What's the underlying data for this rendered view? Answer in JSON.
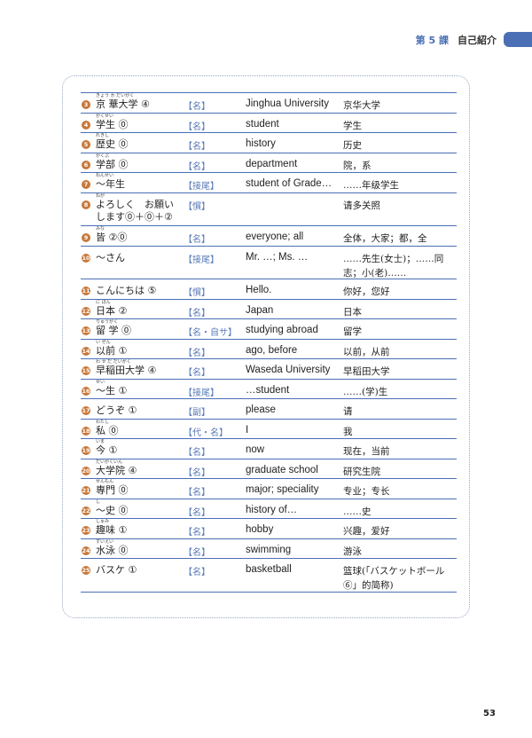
{
  "header": {
    "lesson": "第 5 課",
    "title": "自己紹介",
    "accent_color": "#4a6fb5"
  },
  "page_number": "53",
  "rows": [
    {
      "num": "3",
      "reading": "きょう か だいがく",
      "word": "京 華大学 ④",
      "pos": "【名】",
      "en": "Jinghua University",
      "zh": "京华大学"
    },
    {
      "num": "4",
      "reading": "がくせい",
      "word": "学生 ⓪",
      "pos": "【名】",
      "en": "student",
      "zh": "学生"
    },
    {
      "num": "5",
      "reading": "れきし",
      "word": "歴史 ⓪",
      "pos": "【名】",
      "en": "history",
      "zh": "历史"
    },
    {
      "num": "6",
      "reading": "がくぶ",
      "word": "学部 ⓪",
      "pos": "【名】",
      "en": "department",
      "zh": "院，系"
    },
    {
      "num": "7",
      "reading": "ねんせい",
      "word": "～年生",
      "pos": "【接尾】",
      "en": "student of Grade…",
      "zh": "……年级学生"
    },
    {
      "num": "8",
      "reading": "ねが",
      "word": "よろしく　お願い します⓪＋⓪＋②",
      "pos": "【慣】",
      "en": "",
      "zh": "请多关照",
      "tall": true
    },
    {
      "num": "9",
      "reading": "みな",
      "word": "皆 ②⓪",
      "pos": "【名】",
      "en": "everyone; all",
      "zh": "全体，大家；都，全"
    },
    {
      "num": "10",
      "reading": "",
      "word": "～さん",
      "pos": "【接尾】",
      "en": "Mr. …; Ms. …",
      "zh": "……先生(女士)；……同志；小(老)……",
      "tall": true
    },
    {
      "num": "11",
      "reading": "",
      "word": "こんにちは ⑤",
      "pos": "【慣】",
      "en": "Hello.",
      "zh": "你好，您好"
    },
    {
      "num": "12",
      "reading": "に ほん",
      "word": "日本 ②",
      "pos": "【名】",
      "en": "Japan",
      "zh": "日本"
    },
    {
      "num": "13",
      "reading": "りゅうがく",
      "word": "留 学 ⓪",
      "pos": "【名・自サ】",
      "en": "studying abroad",
      "zh": "留学"
    },
    {
      "num": "14",
      "reading": "い ぜん",
      "word": "以前 ①",
      "pos": "【名】",
      "en": "ago, before",
      "zh": "以前，从前"
    },
    {
      "num": "15",
      "reading": "わ せ だ だいがく",
      "word": "早稲田大学 ④",
      "pos": "【名】",
      "en": "Waseda University",
      "zh": "早稻田大学"
    },
    {
      "num": "16",
      "reading": "せい",
      "word": "～生 ①",
      "pos": "【接尾】",
      "en": "…student",
      "zh": "……(学)生"
    },
    {
      "num": "17",
      "reading": "",
      "word": "どうぞ ①",
      "pos": "【副】",
      "en": "please",
      "zh": "请"
    },
    {
      "num": "18",
      "reading": "わたし",
      "word": "私 ⓪",
      "pos": "【代・名】",
      "en": "I",
      "zh": "我"
    },
    {
      "num": "19",
      "reading": "いま",
      "word": "今 ①",
      "pos": "【名】",
      "en": "now",
      "zh": "现在，当前"
    },
    {
      "num": "20",
      "reading": "だいがくいん",
      "word": "大学院 ④",
      "pos": "【名】",
      "en": "graduate school",
      "zh": "研究生院"
    },
    {
      "num": "21",
      "reading": "せんもん",
      "word": "専門 ⓪",
      "pos": "【名】",
      "en": "major; speciality",
      "zh": "专业；专长"
    },
    {
      "num": "22",
      "reading": "し",
      "word": "～史 ⓪",
      "pos": "【名】",
      "en": "history of…",
      "zh": "……史"
    },
    {
      "num": "23",
      "reading": "しゅみ",
      "word": "趣味 ①",
      "pos": "【名】",
      "en": "hobby",
      "zh": "兴趣，爱好"
    },
    {
      "num": "24",
      "reading": "すいえい",
      "word": "水泳 ⓪",
      "pos": "【名】",
      "en": "swimming",
      "zh": "游泳"
    },
    {
      "num": "25",
      "reading": "",
      "word": "バスケ ①",
      "pos": "【名】",
      "en": "basketball",
      "zh": "篮球(「バスケットボール⑥」的简称)",
      "tall": true
    }
  ]
}
